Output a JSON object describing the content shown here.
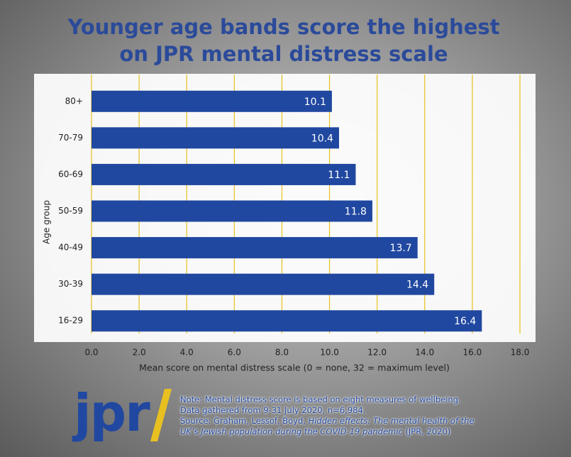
{
  "chart_data": {
    "type": "bar",
    "orientation": "horizontal",
    "title": [
      "Younger age bands score the highest",
      "on JPR mental distress scale"
    ],
    "categories": [
      "80+",
      "70-79",
      "60-69",
      "50-59",
      "40-49",
      "30-39",
      "16-29"
    ],
    "values": [
      10.1,
      10.4,
      11.1,
      11.8,
      13.7,
      14.4,
      16.4
    ],
    "color": "#2148a0",
    "xlim": [
      0,
      18
    ],
    "xticks": [
      {
        "value": 0,
        "label": "0.0"
      },
      {
        "value": 2,
        "label": "2.0"
      },
      {
        "value": 4,
        "label": "4.0"
      },
      {
        "value": 6,
        "label": "6.0"
      },
      {
        "value": 8,
        "label": "8.0"
      },
      {
        "value": 10,
        "label": "10.0"
      },
      {
        "value": 12,
        "label": "12.0"
      },
      {
        "value": 14,
        "label": "14.0"
      },
      {
        "value": 16,
        "label": "16.0"
      },
      {
        "value": 18,
        "label": "18.0"
      }
    ],
    "grid": true,
    "grid_color": "#e8c020",
    "xlabel": "Mean score on mental distress scale (0 = none, 32 = maximum  level)",
    "ylabel": "Age group"
  },
  "footer": {
    "logo": "jpr",
    "note": [
      "Note: Mental distress score is based on eight measures of wellbeing.",
      "Data gathered from 9-31 July 2020, n=6,984."
    ],
    "source": {
      "prefix": "Source: Graham, Lessof, Boyd, ",
      "italic": "Hidden effects: The mental health of the UK’s Jewish population during the COVID-19 pandemic",
      "suffix": " (JPR, 2020)"
    }
  }
}
